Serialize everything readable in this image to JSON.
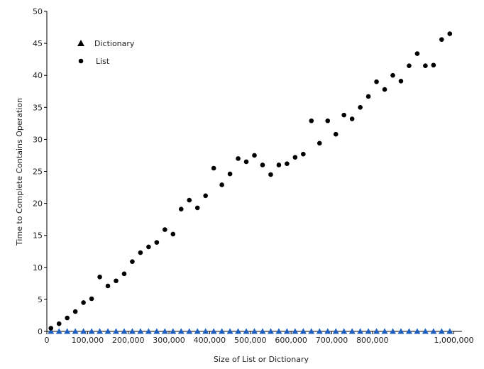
{
  "chart_data": {
    "type": "scatter",
    "title": "",
    "xlabel": "Size of List or Dictionary",
    "ylabel": "Time to Complete Contains Operation",
    "xlim": [
      0,
      1020000
    ],
    "ylim": [
      0,
      50
    ],
    "x_ticks": [
      0,
      100000,
      200000,
      300000,
      400000,
      500000,
      600000,
      700000,
      800000,
      1000000
    ],
    "x_tick_labels": [
      "0",
      "100,000",
      "200,000",
      "300,000",
      "400,000",
      "500,000",
      "600,000",
      "700,000",
      "800,000",
      "1,000,000"
    ],
    "y_ticks": [
      0,
      5,
      10,
      15,
      20,
      25,
      30,
      35,
      40,
      45,
      50
    ],
    "y_tick_labels": [
      "0",
      "5",
      "10",
      "15",
      "20",
      "25",
      "30",
      "35",
      "40",
      "45",
      "50"
    ],
    "grid": false,
    "legend_position": "top-left",
    "series": [
      {
        "name": "Dictionary",
        "marker": "triangle",
        "color": "#1f5fbf",
        "points": [
          [
            10000,
            0
          ],
          [
            30000,
            0
          ],
          [
            50000,
            0
          ],
          [
            70000,
            0
          ],
          [
            90000,
            0
          ],
          [
            110000,
            0
          ],
          [
            130000,
            0
          ],
          [
            150000,
            0
          ],
          [
            170000,
            0
          ],
          [
            190000,
            0
          ],
          [
            210000,
            0
          ],
          [
            230000,
            0
          ],
          [
            250000,
            0
          ],
          [
            270000,
            0
          ],
          [
            290000,
            0
          ],
          [
            310000,
            0
          ],
          [
            330000,
            0
          ],
          [
            350000,
            0
          ],
          [
            370000,
            0
          ],
          [
            390000,
            0
          ],
          [
            410000,
            0
          ],
          [
            430000,
            0
          ],
          [
            450000,
            0
          ],
          [
            470000,
            0
          ],
          [
            490000,
            0
          ],
          [
            510000,
            0
          ],
          [
            530000,
            0
          ],
          [
            550000,
            0
          ],
          [
            570000,
            0
          ],
          [
            590000,
            0
          ],
          [
            610000,
            0
          ],
          [
            630000,
            0
          ],
          [
            650000,
            0
          ],
          [
            670000,
            0
          ],
          [
            690000,
            0
          ],
          [
            710000,
            0
          ],
          [
            730000,
            0
          ],
          [
            750000,
            0
          ],
          [
            770000,
            0
          ],
          [
            790000,
            0
          ],
          [
            810000,
            0
          ],
          [
            830000,
            0
          ],
          [
            850000,
            0
          ],
          [
            870000,
            0
          ],
          [
            890000,
            0
          ],
          [
            910000,
            0
          ],
          [
            930000,
            0
          ],
          [
            950000,
            0
          ],
          [
            970000,
            0
          ],
          [
            990000,
            0
          ]
        ]
      },
      {
        "name": "List",
        "marker": "circle",
        "color": "#000000",
        "points": [
          [
            10000,
            0.5
          ],
          [
            30000,
            1.2
          ],
          [
            50000,
            2.1
          ],
          [
            70000,
            3.1
          ],
          [
            90000,
            4.5
          ],
          [
            110000,
            5.1
          ],
          [
            130000,
            8.5
          ],
          [
            150000,
            7.1
          ],
          [
            170000,
            7.9
          ],
          [
            190000,
            9.0
          ],
          [
            210000,
            10.9
          ],
          [
            230000,
            12.3
          ],
          [
            250000,
            13.2
          ],
          [
            270000,
            13.9
          ],
          [
            290000,
            15.9
          ],
          [
            310000,
            15.2
          ],
          [
            330000,
            19.1
          ],
          [
            350000,
            20.5
          ],
          [
            370000,
            19.3
          ],
          [
            390000,
            21.2
          ],
          [
            410000,
            25.5
          ],
          [
            430000,
            22.9
          ],
          [
            450000,
            24.6
          ],
          [
            470000,
            27.0
          ],
          [
            490000,
            26.5
          ],
          [
            510000,
            27.5
          ],
          [
            530000,
            26.0
          ],
          [
            550000,
            24.5
          ],
          [
            570000,
            26.0
          ],
          [
            590000,
            26.2
          ],
          [
            610000,
            27.2
          ],
          [
            630000,
            27.7
          ],
          [
            650000,
            32.9
          ],
          [
            670000,
            29.4
          ],
          [
            690000,
            32.9
          ],
          [
            710000,
            30.8
          ],
          [
            730000,
            33.8
          ],
          [
            750000,
            33.2
          ],
          [
            770000,
            35.0
          ],
          [
            790000,
            36.7
          ],
          [
            810000,
            39.0
          ],
          [
            830000,
            37.8
          ],
          [
            850000,
            40.0
          ],
          [
            870000,
            39.1
          ],
          [
            890000,
            41.5
          ],
          [
            910000,
            43.4
          ],
          [
            930000,
            41.5
          ],
          [
            950000,
            41.6
          ],
          [
            970000,
            45.6
          ],
          [
            990000,
            46.5
          ]
        ]
      }
    ]
  }
}
